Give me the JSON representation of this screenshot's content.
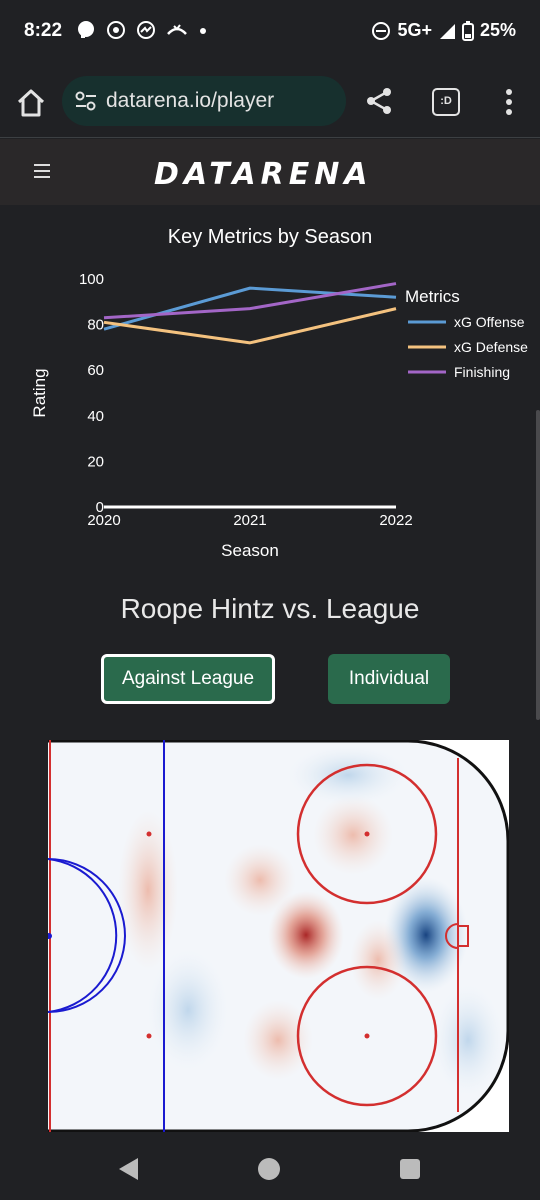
{
  "status": {
    "time": "8:22",
    "network": "5G+",
    "battery": "25%"
  },
  "browser": {
    "url": "datarena.io/player",
    "tab_icon_text": ":D"
  },
  "site": {
    "logo": "DATARENA"
  },
  "chart_data": {
    "type": "line",
    "title": "Key Metrics by Season",
    "xlabel": "Season",
    "ylabel": "Rating",
    "x": [
      "2020",
      "2021",
      "2022"
    ],
    "ylim": [
      0,
      100
    ],
    "yticks": [
      "0",
      "20",
      "40",
      "60",
      "80",
      "100"
    ],
    "legend_title": "Metrics",
    "legend_position": "right",
    "series": [
      {
        "name": "xG Offense",
        "values": [
          78,
          96,
          92
        ],
        "color": "#5b9bd5"
      },
      {
        "name": "xG Defense",
        "values": [
          81,
          72,
          87
        ],
        "color": "#f4c27f"
      },
      {
        "name": "Finishing",
        "values": [
          83,
          87,
          98
        ],
        "color": "#a366c7"
      }
    ]
  },
  "player": {
    "heading": "Roope Hintz vs. League",
    "btn_league": "Against League",
    "btn_individual": "Individual"
  }
}
